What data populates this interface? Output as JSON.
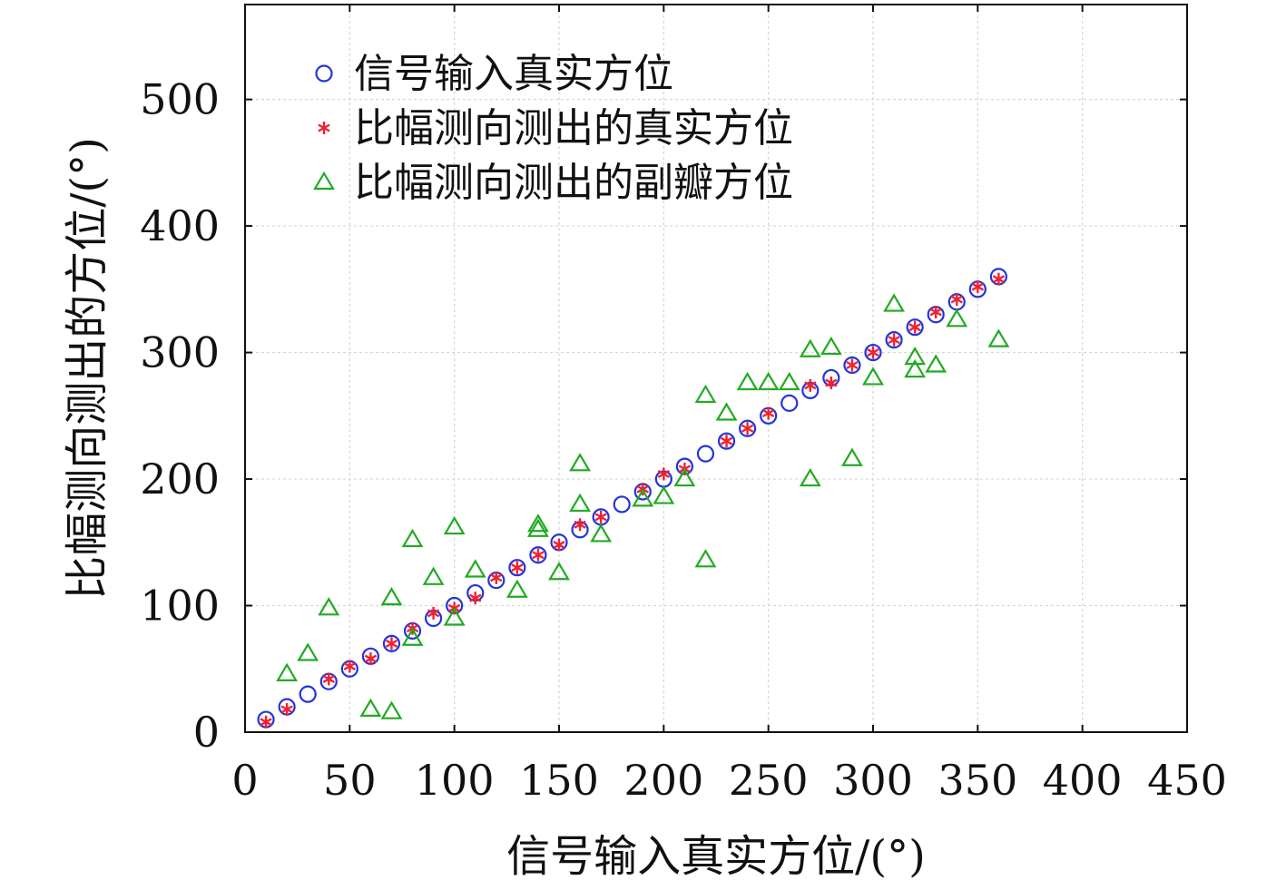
{
  "chart_data": {
    "type": "scatter",
    "xlabel": "信号输入真实方位/(°)",
    "ylabel": "比幅测向测出的方位/(°)",
    "xlim": [
      0,
      450
    ],
    "ylim": [
      0,
      575
    ],
    "xticks": [
      0,
      50,
      100,
      150,
      200,
      250,
      300,
      350,
      400,
      450
    ],
    "yticks": [
      0,
      100,
      200,
      300,
      400,
      500
    ],
    "grid": true,
    "legend_position": "top-left",
    "series": [
      {
        "name": "信号输入真实方位",
        "marker": "circle",
        "color": "#2233dd",
        "points": [
          [
            10,
            10
          ],
          [
            20,
            20
          ],
          [
            30,
            30
          ],
          [
            40,
            40
          ],
          [
            50,
            50
          ],
          [
            60,
            60
          ],
          [
            70,
            70
          ],
          [
            80,
            80
          ],
          [
            90,
            90
          ],
          [
            100,
            100
          ],
          [
            110,
            110
          ],
          [
            120,
            120
          ],
          [
            130,
            130
          ],
          [
            140,
            140
          ],
          [
            150,
            150
          ],
          [
            160,
            160
          ],
          [
            170,
            170
          ],
          [
            180,
            180
          ],
          [
            190,
            190
          ],
          [
            200,
            200
          ],
          [
            210,
            210
          ],
          [
            220,
            220
          ],
          [
            230,
            230
          ],
          [
            240,
            240
          ],
          [
            250,
            250
          ],
          [
            260,
            260
          ],
          [
            270,
            270
          ],
          [
            280,
            280
          ],
          [
            290,
            290
          ],
          [
            300,
            300
          ],
          [
            310,
            310
          ],
          [
            320,
            320
          ],
          [
            330,
            330
          ],
          [
            340,
            340
          ],
          [
            350,
            350
          ],
          [
            360,
            360
          ]
        ]
      },
      {
        "name": "比幅测向测出的真实方位",
        "marker": "asterisk",
        "color": "#ee2233",
        "points": [
          [
            10,
            8
          ],
          [
            20,
            18
          ],
          [
            40,
            42
          ],
          [
            50,
            52
          ],
          [
            60,
            58
          ],
          [
            70,
            70
          ],
          [
            80,
            82
          ],
          [
            90,
            94
          ],
          [
            100,
            98
          ],
          [
            110,
            106
          ],
          [
            120,
            122
          ],
          [
            130,
            130
          ],
          [
            140,
            140
          ],
          [
            150,
            148
          ],
          [
            160,
            164
          ],
          [
            170,
            170
          ],
          [
            190,
            192
          ],
          [
            200,
            204
          ],
          [
            210,
            208
          ],
          [
            230,
            230
          ],
          [
            240,
            240
          ],
          [
            250,
            252
          ],
          [
            270,
            274
          ],
          [
            280,
            276
          ],
          [
            290,
            290
          ],
          [
            300,
            300
          ],
          [
            310,
            310
          ],
          [
            320,
            320
          ],
          [
            330,
            332
          ],
          [
            340,
            342
          ],
          [
            350,
            352
          ],
          [
            360,
            358
          ]
        ]
      },
      {
        "name": "比幅测向测出的副瓣方位",
        "marker": "triangle",
        "color": "#22aa22",
        "points": [
          [
            20,
            46
          ],
          [
            30,
            62
          ],
          [
            40,
            98
          ],
          [
            60,
            18
          ],
          [
            70,
            16
          ],
          [
            70,
            106
          ],
          [
            80,
            152
          ],
          [
            80,
            74
          ],
          [
            90,
            122
          ],
          [
            100,
            162
          ],
          [
            100,
            90
          ],
          [
            110,
            128
          ],
          [
            130,
            112
          ],
          [
            140,
            164
          ],
          [
            140,
            160
          ],
          [
            150,
            126
          ],
          [
            160,
            212
          ],
          [
            160,
            180
          ],
          [
            170,
            156
          ],
          [
            190,
            184
          ],
          [
            200,
            186
          ],
          [
            210,
            200
          ],
          [
            220,
            136
          ],
          [
            220,
            266
          ],
          [
            230,
            252
          ],
          [
            240,
            276
          ],
          [
            250,
            276
          ],
          [
            260,
            276
          ],
          [
            270,
            200
          ],
          [
            270,
            302
          ],
          [
            280,
            304
          ],
          [
            290,
            216
          ],
          [
            300,
            280
          ],
          [
            310,
            338
          ],
          [
            320,
            296
          ],
          [
            320,
            286
          ],
          [
            330,
            290
          ],
          [
            340,
            326
          ],
          [
            360,
            310
          ]
        ]
      }
    ]
  }
}
